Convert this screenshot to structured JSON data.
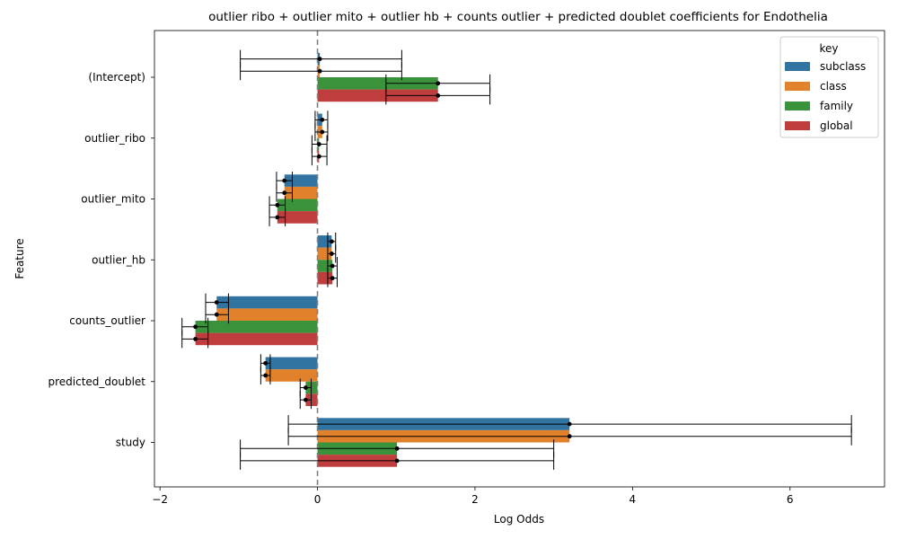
{
  "chart_data": {
    "type": "bar",
    "orientation": "horizontal",
    "title": "outlier ribo + outlier mito + outlier hb + counts outlier + predicted doublet coefficients for Endothelia",
    "xlabel": "Log Odds",
    "ylabel": "Feature",
    "xlim": [
      -2.07,
      7.2
    ],
    "xticks": [
      -2,
      0,
      2,
      4,
      6
    ],
    "reference_line": 0,
    "grid": false,
    "legend": {
      "title": "key",
      "position": "top-right"
    },
    "categories": [
      "(Intercept)",
      "outlier_ribo",
      "outlier_mito",
      "outlier_hb",
      "counts_outlier",
      "predicted_doublet",
      "study"
    ],
    "series": [
      {
        "name": "subclass",
        "color": "#3274a1",
        "values": [
          0.03,
          0.06,
          -0.42,
          0.18,
          -1.28,
          -0.66,
          3.2
        ],
        "ci_low": [
          -0.98,
          -0.03,
          -0.52,
          0.13,
          -1.42,
          -0.72,
          -0.37
        ],
        "ci_high": [
          1.07,
          0.13,
          -0.32,
          0.23,
          -1.13,
          -0.6,
          6.78
        ]
      },
      {
        "name": "class",
        "color": "#e1812c",
        "values": [
          0.03,
          0.06,
          -0.42,
          0.18,
          -1.28,
          -0.66,
          3.2
        ],
        "ci_low": [
          -0.98,
          -0.03,
          -0.52,
          0.13,
          -1.42,
          -0.72,
          -0.37
        ],
        "ci_high": [
          1.07,
          0.13,
          -0.32,
          0.23,
          -1.13,
          -0.6,
          6.78
        ]
      },
      {
        "name": "family",
        "color": "#3a923a",
        "values": [
          1.53,
          0.02,
          -0.51,
          0.19,
          -1.55,
          -0.15,
          1.01
        ],
        "ci_low": [
          0.87,
          -0.07,
          -0.61,
          0.13,
          -1.72,
          -0.22,
          -0.98
        ],
        "ci_high": [
          2.19,
          0.12,
          -0.41,
          0.25,
          -1.39,
          -0.08,
          3.0
        ]
      },
      {
        "name": "global",
        "color": "#c03d3e",
        "values": [
          1.53,
          0.02,
          -0.51,
          0.19,
          -1.55,
          -0.15,
          1.01
        ],
        "ci_low": [
          0.87,
          -0.07,
          -0.61,
          0.13,
          -1.72,
          -0.22,
          -0.98
        ],
        "ci_high": [
          2.19,
          0.12,
          -0.41,
          0.25,
          -1.39,
          -0.08,
          3.0
        ]
      }
    ]
  }
}
